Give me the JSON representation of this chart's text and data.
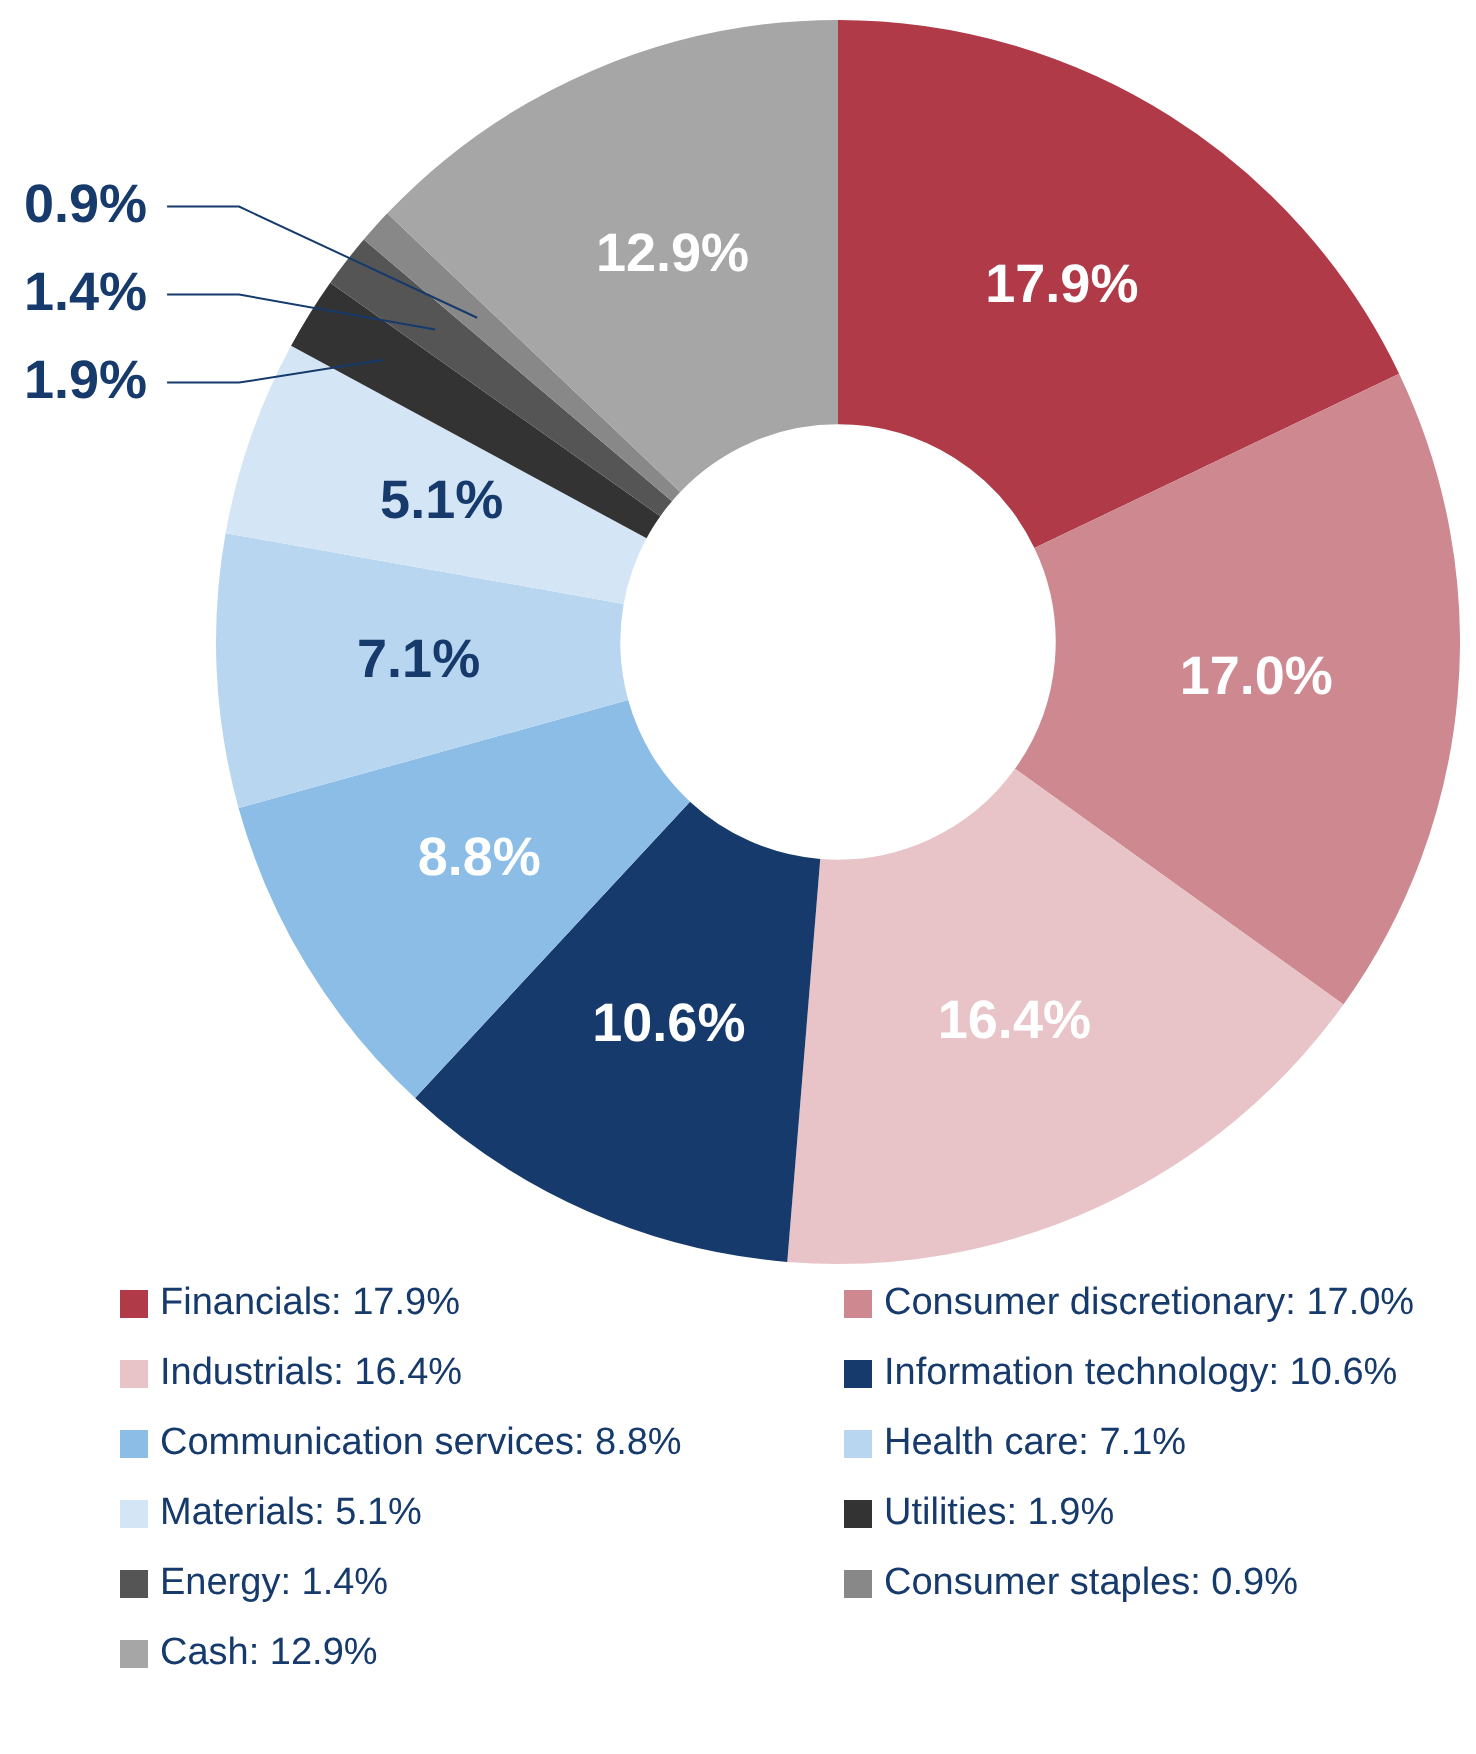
{
  "chart_data": {
    "type": "donut",
    "categories": [
      "Financials",
      "Consumer discretionary",
      "Industrials",
      "Information technology",
      "Communication services",
      "Health care",
      "Materials",
      "Utilities",
      "Energy",
      "Consumer staples",
      "Cash"
    ],
    "values": [
      17.9,
      17.0,
      16.4,
      10.6,
      8.8,
      7.1,
      5.1,
      1.9,
      1.4,
      0.9,
      12.9
    ],
    "value_labels": [
      "17.9%",
      "17.0%",
      "16.4%",
      "10.6%",
      "8.8%",
      "7.1%",
      "5.1%",
      "1.9%",
      "1.4%",
      "0.9%",
      "12.9%"
    ],
    "colors": [
      "#b03a48",
      "#cd8890",
      "#e8c4c9",
      "#163a6b",
      "#8bbde6",
      "#b8d6ef",
      "#d4e6f6",
      "#333333",
      "#555555",
      "#888888",
      "#a6a6a6"
    ],
    "data_labels": true,
    "legend": "bottom"
  }
}
